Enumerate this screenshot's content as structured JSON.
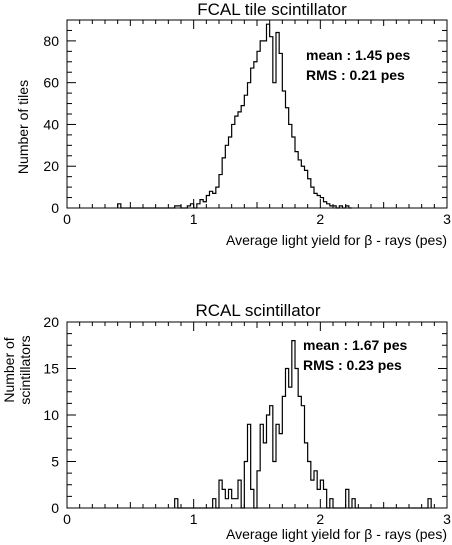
{
  "chart_data": [
    {
      "type": "histogram",
      "title": "FCAL tile scintillator",
      "xlabel": "Average light yield for β - rays (pes)",
      "ylabel": "Number of tiles",
      "xlim": [
        0,
        3
      ],
      "ylim": [
        0,
        90
      ],
      "xticks": [
        0,
        1,
        2,
        3
      ],
      "yticks": [
        0,
        20,
        40,
        60,
        80
      ],
      "grid": false,
      "legend": "none",
      "stats": {
        "mean": "mean : 1.45  pes",
        "rms": "RMS   : 0.21  pes"
      },
      "bin_width": 0.025,
      "bins_start": 0.4,
      "counts": [
        2,
        0,
        0,
        0,
        0,
        0,
        0,
        0,
        0,
        0,
        0,
        0,
        0,
        0,
        0,
        0,
        0,
        0,
        1,
        1,
        0,
        0,
        1,
        2,
        0,
        2,
        4,
        3,
        6,
        8,
        7,
        10,
        16,
        24,
        30,
        34,
        40,
        44,
        46,
        49,
        54,
        60,
        67,
        70,
        75,
        80,
        80,
        88,
        82,
        60,
        84,
        74,
        56,
        48,
        40,
        34,
        27,
        23,
        20,
        18,
        14,
        10,
        7,
        6,
        5,
        3,
        2,
        1,
        1,
        0,
        1,
        0,
        1,
        0
      ]
    },
    {
      "type": "histogram",
      "title": "RCAL scintillator",
      "xlabel": "Average light yield for β - rays (pes)",
      "ylabel": "Number of scintillators",
      "xlim": [
        0,
        3
      ],
      "ylim": [
        0,
        20
      ],
      "xticks": [
        0,
        1,
        2,
        3
      ],
      "yticks": [
        0,
        5,
        10,
        15,
        20
      ],
      "grid": false,
      "legend": "none",
      "stats": {
        "mean": "mean : 1.67  pes",
        "rms": "RMS   : 0.23  pes"
      },
      "bin_width": 0.025,
      "bins_start": 0.85,
      "counts": [
        1,
        0,
        0,
        0,
        0,
        0,
        0,
        0,
        0,
        0,
        0,
        0,
        1,
        0,
        3,
        2,
        1,
        2,
        1,
        1,
        3,
        0,
        5,
        9,
        2,
        0,
        4,
        9,
        7,
        10,
        11,
        5,
        9,
        8,
        12,
        15,
        13,
        18,
        15,
        12,
        11,
        7,
        5,
        3,
        4,
        2,
        3,
        2,
        0,
        1,
        0,
        0,
        0,
        0,
        2,
        0,
        1,
        0,
        0,
        0,
        0,
        0,
        0,
        0,
        0,
        0,
        0,
        0,
        0,
        0,
        0,
        0,
        0,
        0,
        0,
        0,
        0,
        0,
        0,
        0,
        1
      ]
    }
  ]
}
